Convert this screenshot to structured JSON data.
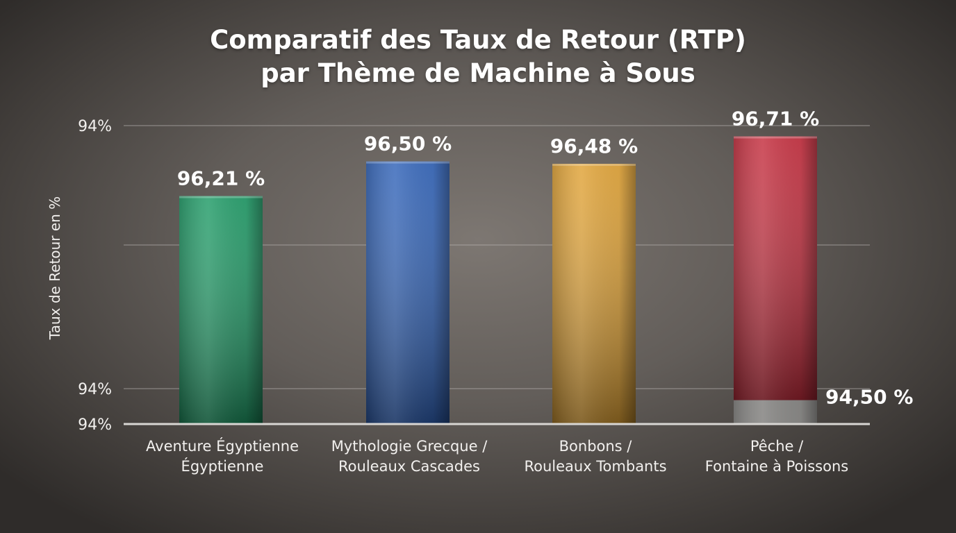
{
  "chart_data": {
    "type": "bar",
    "title": [
      "Comparatif des Taux de Retour (RTP)",
      "par Thème de Machine à Sous"
    ],
    "ylabel": "Taux de Retour en %",
    "y_tick_labels": [
      "94%",
      "94%",
      "94%"
    ],
    "ylim": [
      94.3,
      96.8
    ],
    "grid": true,
    "categories": [
      [
        "Aventure Égyptienne",
        "Égyptienne"
      ],
      [
        "Mythologie Grecque /",
        "Rouleaux Cascades"
      ],
      [
        "Bonbons /",
        "Rouleaux Tombants"
      ],
      [
        "Pêche /",
        "Fontaine à Poissons"
      ]
    ],
    "series": [
      {
        "values": [
          96.21,
          96.5,
          96.48,
          96.71
        ],
        "value_labels": [
          "96,21 %",
          "96,50 %",
          "96,48 %",
          "96,71 %"
        ]
      }
    ],
    "secondary_values": [
      null,
      null,
      null,
      94.5
    ],
    "secondary_value_labels": [
      "",
      "",
      "",
      "94,50 %"
    ],
    "colors": [
      "#1f9a66",
      "#3163b8",
      "#e0a235",
      "#c42d3d"
    ],
    "secondary_color": "#8a8987"
  }
}
